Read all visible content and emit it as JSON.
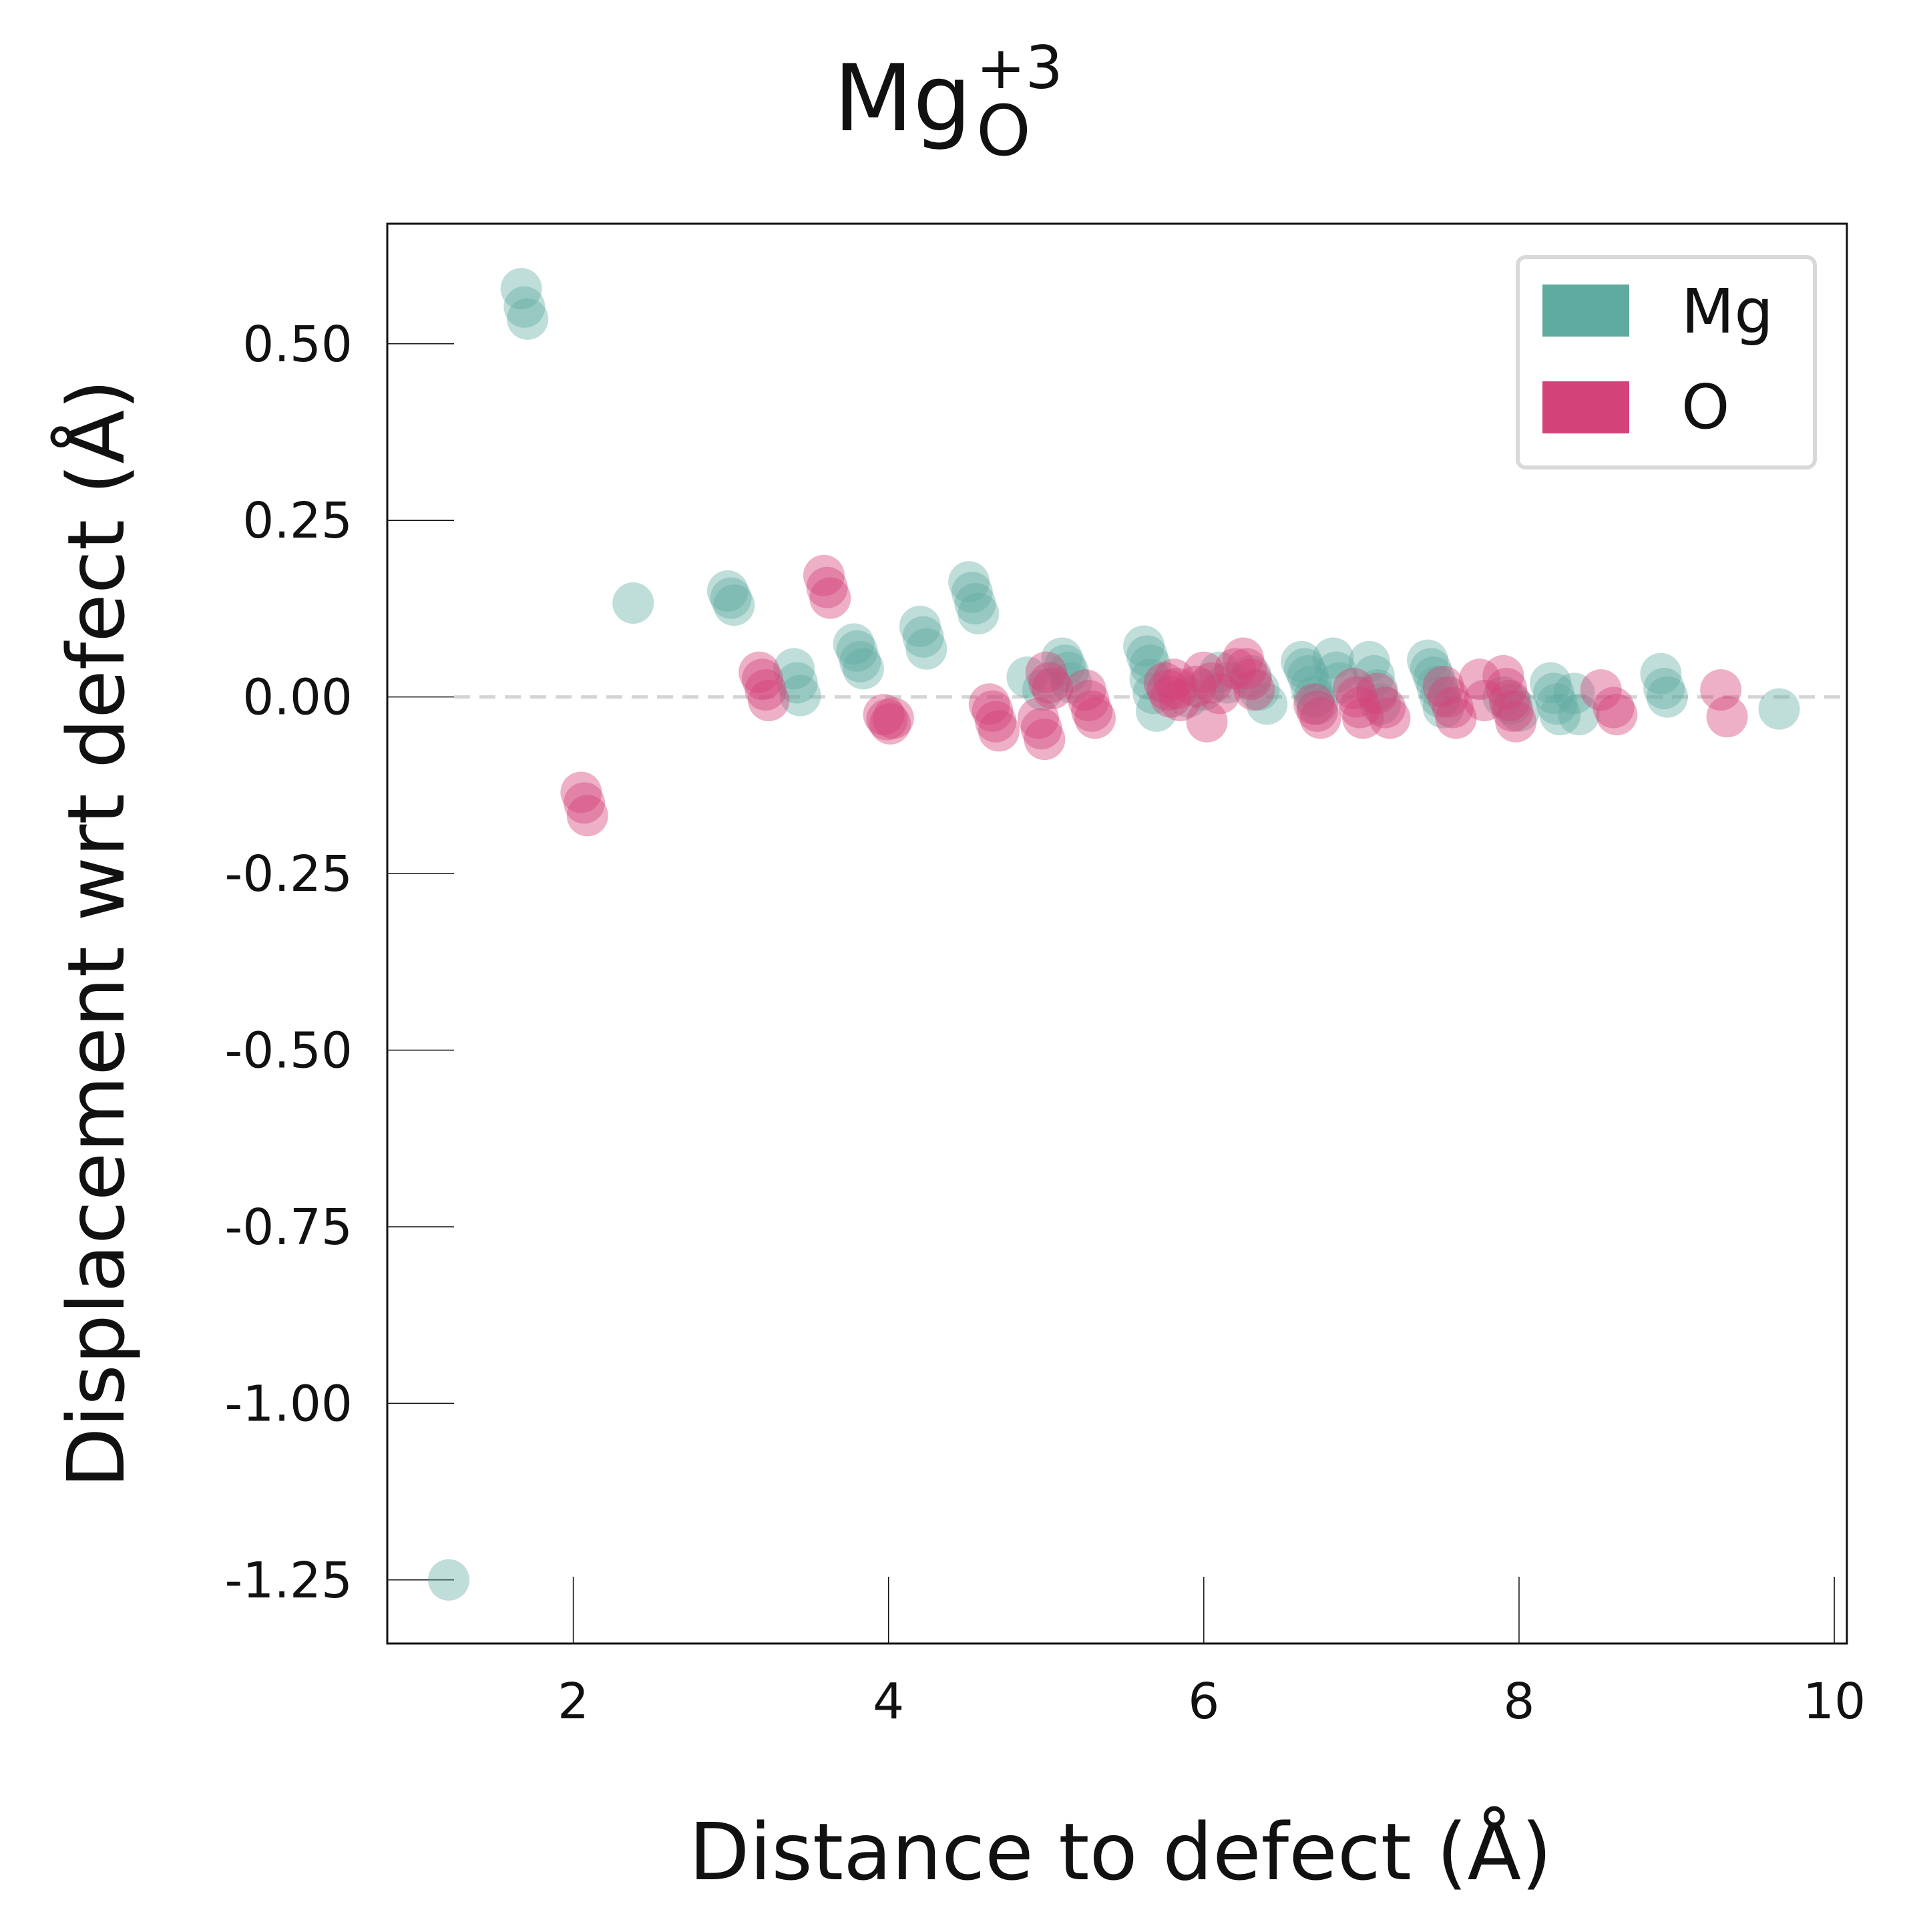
{
  "chart_data": {
    "type": "scatter",
    "title": {
      "base": "Mg",
      "sub": "O",
      "sup": "+3"
    },
    "xlabel": "Distance to defect (Å)",
    "ylabel": "Displacement wrt defect (Å)",
    "xlim": [
      0.82,
      10.08
    ],
    "ylim": [
      -1.34,
      0.67
    ],
    "xticks": [
      2,
      4,
      6,
      8,
      10
    ],
    "xtick_labels": [
      "2",
      "4",
      "6",
      "8",
      "10"
    ],
    "yticks": [
      0.5,
      0.25,
      0.0,
      -0.25,
      -0.5,
      -0.75,
      -1.0,
      -1.25
    ],
    "ytick_labels": [
      "0.50",
      "0.25",
      "0.00",
      "-0.25",
      "-0.50",
      "-0.75",
      "-1.00",
      "-1.25"
    ],
    "grid": false,
    "reference_line": {
      "y": 0.0,
      "style": "dashed",
      "color": "#d4d4d4"
    },
    "legend": {
      "position": "top-right",
      "entries": [
        "Mg",
        "O"
      ]
    },
    "series": [
      {
        "name": "Mg",
        "color": "#60ab9f",
        "points": [
          [
            1.21,
            -1.25
          ],
          [
            1.67,
            0.578
          ],
          [
            1.69,
            0.552
          ],
          [
            1.71,
            0.535
          ],
          [
            2.38,
            0.133
          ],
          [
            2.98,
            0.15
          ],
          [
            3.0,
            0.14
          ],
          [
            3.02,
            0.13
          ],
          [
            3.4,
            0.04
          ],
          [
            3.42,
            0.02
          ],
          [
            3.44,
            0.002
          ],
          [
            3.78,
            0.075
          ],
          [
            3.8,
            0.065
          ],
          [
            3.82,
            0.05
          ],
          [
            3.84,
            0.04
          ],
          [
            4.2,
            0.1
          ],
          [
            4.22,
            0.085
          ],
          [
            4.24,
            0.068
          ],
          [
            4.51,
            0.163
          ],
          [
            4.53,
            0.148
          ],
          [
            4.55,
            0.132
          ],
          [
            4.57,
            0.118
          ],
          [
            4.88,
            0.028
          ],
          [
            4.98,
            0.01
          ],
          [
            5.1,
            0.055
          ],
          [
            5.12,
            0.045
          ],
          [
            5.14,
            0.035
          ],
          [
            5.16,
            0.02
          ],
          [
            5.62,
            0.072
          ],
          [
            5.64,
            0.058
          ],
          [
            5.66,
            0.045
          ],
          [
            5.66,
            0.025
          ],
          [
            5.68,
            0.005
          ],
          [
            5.7,
            -0.02
          ],
          [
            5.9,
            0.0
          ],
          [
            6.0,
            0.01
          ],
          [
            6.1,
            0.035
          ],
          [
            6.15,
            0.02
          ],
          [
            6.3,
            0.03
          ],
          [
            6.35,
            0.01
          ],
          [
            6.4,
            -0.01
          ],
          [
            6.62,
            0.05
          ],
          [
            6.64,
            0.04
          ],
          [
            6.66,
            0.03
          ],
          [
            6.68,
            0.015
          ],
          [
            6.7,
            0.0
          ],
          [
            6.72,
            -0.01
          ],
          [
            6.82,
            0.055
          ],
          [
            6.84,
            0.035
          ],
          [
            6.86,
            0.02
          ],
          [
            7.05,
            0.05
          ],
          [
            7.08,
            0.03
          ],
          [
            7.1,
            0.01
          ],
          [
            7.12,
            -0.01
          ],
          [
            7.42,
            0.052
          ],
          [
            7.44,
            0.04
          ],
          [
            7.46,
            0.028
          ],
          [
            7.48,
            0.015
          ],
          [
            7.5,
            0.0
          ],
          [
            7.52,
            -0.015
          ],
          [
            7.9,
            0.0
          ],
          [
            7.95,
            -0.01
          ],
          [
            8.0,
            -0.02
          ],
          [
            8.2,
            0.02
          ],
          [
            8.22,
            0.005
          ],
          [
            8.24,
            -0.01
          ],
          [
            8.26,
            -0.025
          ],
          [
            8.35,
            0.005
          ],
          [
            8.38,
            -0.025
          ],
          [
            8.9,
            0.033
          ],
          [
            8.92,
            0.012
          ],
          [
            8.94,
            0.0
          ],
          [
            9.65,
            -0.017
          ]
        ]
      },
      {
        "name": "O",
        "color": "#d4427a",
        "points": [
          [
            2.05,
            -0.135
          ],
          [
            2.07,
            -0.15
          ],
          [
            2.09,
            -0.168
          ],
          [
            3.18,
            0.035
          ],
          [
            3.2,
            0.025
          ],
          [
            3.22,
            0.01
          ],
          [
            3.24,
            -0.005
          ],
          [
            3.59,
            0.172
          ],
          [
            3.61,
            0.155
          ],
          [
            3.63,
            0.14
          ],
          [
            3.97,
            -0.025
          ],
          [
            3.99,
            -0.032
          ],
          [
            4.01,
            -0.038
          ],
          [
            4.03,
            -0.03
          ],
          [
            4.64,
            -0.01
          ],
          [
            4.66,
            -0.02
          ],
          [
            4.68,
            -0.035
          ],
          [
            4.7,
            -0.048
          ],
          [
            4.95,
            -0.03
          ],
          [
            4.97,
            -0.045
          ],
          [
            4.99,
            -0.06
          ],
          [
            5.0,
            0.035
          ],
          [
            5.02,
            0.02
          ],
          [
            5.04,
            0.012
          ],
          [
            5.25,
            0.01
          ],
          [
            5.27,
            -0.005
          ],
          [
            5.29,
            -0.02
          ],
          [
            5.31,
            -0.03
          ],
          [
            5.75,
            0.02
          ],
          [
            5.77,
            0.01
          ],
          [
            5.79,
            0.0
          ],
          [
            5.81,
            0.025
          ],
          [
            5.83,
            0.012
          ],
          [
            5.85,
            -0.005
          ],
          [
            5.95,
            0.015
          ],
          [
            6.0,
            0.035
          ],
          [
            6.02,
            -0.035
          ],
          [
            6.05,
            0.02
          ],
          [
            6.1,
            0.005
          ],
          [
            6.2,
            0.04
          ],
          [
            6.25,
            0.055
          ],
          [
            6.27,
            0.04
          ],
          [
            6.3,
            0.025
          ],
          [
            6.32,
            0.01
          ],
          [
            6.7,
            -0.01
          ],
          [
            6.72,
            -0.02
          ],
          [
            6.74,
            -0.03
          ],
          [
            6.95,
            0.012
          ],
          [
            6.97,
            0.0
          ],
          [
            6.99,
            -0.015
          ],
          [
            7.01,
            -0.03
          ],
          [
            7.1,
            0.005
          ],
          [
            7.15,
            -0.015
          ],
          [
            7.18,
            -0.03
          ],
          [
            7.52,
            0.015
          ],
          [
            7.55,
            0.0
          ],
          [
            7.58,
            -0.015
          ],
          [
            7.6,
            -0.03
          ],
          [
            7.75,
            0.025
          ],
          [
            7.78,
            -0.005
          ],
          [
            7.9,
            0.03
          ],
          [
            7.92,
            0.012
          ],
          [
            7.94,
            -0.005
          ],
          [
            7.96,
            -0.02
          ],
          [
            7.98,
            -0.035
          ],
          [
            8.52,
            0.01
          ],
          [
            8.6,
            -0.015
          ],
          [
            8.62,
            -0.025
          ],
          [
            9.28,
            0.01
          ],
          [
            9.32,
            -0.028
          ]
        ]
      }
    ]
  }
}
